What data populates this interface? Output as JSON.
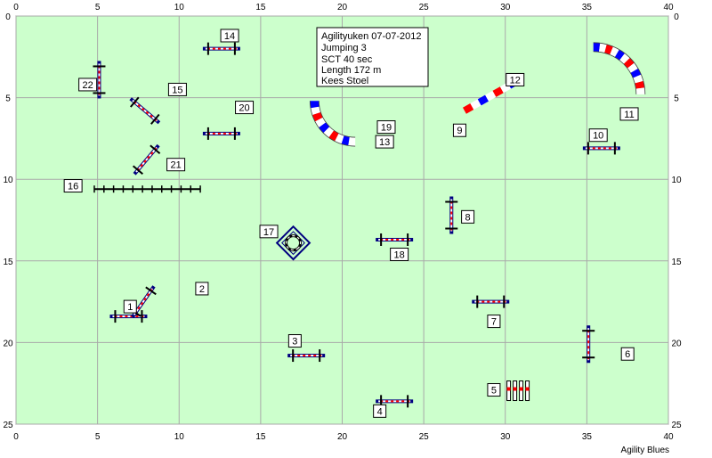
{
  "course": {
    "x_axis": {
      "min": 0,
      "max": 40,
      "ticks": [
        0,
        5,
        10,
        15,
        20,
        25,
        30,
        35,
        40
      ]
    },
    "y_axis": {
      "min": 0,
      "max": 25,
      "ticks": [
        0,
        5,
        10,
        15,
        20,
        25
      ]
    },
    "grid": true,
    "field_color": "#ccffcc",
    "grid_color": "#a9a9a9"
  },
  "info": {
    "lines": [
      "Agilityuken 07-07-2012",
      "Jumping 3",
      "SCT 40 sec",
      "Length 172 m",
      "Kees Stoel"
    ]
  },
  "footer": "Agility Blues",
  "colors": {
    "red": "#ff0000",
    "blue": "#0000ff",
    "white": "#ffffff",
    "black": "#000000",
    "navy": "#000080"
  },
  "jumps": [
    {
      "number": "1",
      "x": 6.9,
      "y": 18.4,
      "angle": 0
    },
    {
      "number": "2",
      "x": 7.8,
      "y": 17.5,
      "angle": -55,
      "cx": 11.5,
      "cy": 18.0
    },
    {
      "number": "3",
      "x": 17.8,
      "y": 20.8,
      "angle": 0
    },
    {
      "number": "4",
      "x": 23.2,
      "y": 23.6,
      "angle": 0
    },
    {
      "number": "6",
      "x": 35.1,
      "y": 20.1,
      "angle": 90
    },
    {
      "number": "7",
      "x": 29.1,
      "y": 17.5,
      "angle": 0
    },
    {
      "number": "8",
      "x": 26.7,
      "y": 12.2,
      "angle": 90
    },
    {
      "number": "10",
      "x": 35.9,
      "y": 8.1,
      "angle": 0
    },
    {
      "number": "14",
      "x": 12.6,
      "y": 2.0,
      "angle": 0
    },
    {
      "number": "15",
      "x": 7.9,
      "y": 5.8,
      "angle": 40
    },
    {
      "number": "18",
      "x": 23.2,
      "y": 13.7,
      "angle": 0
    },
    {
      "number": "20",
      "x": 12.6,
      "y": 7.2,
      "angle": 0
    },
    {
      "number": "21",
      "x": 8.0,
      "y": 8.8,
      "angle": -50
    },
    {
      "number": "22",
      "x": 5.1,
      "y": 3.9,
      "angle": 90
    }
  ],
  "labels": [
    {
      "text": "1",
      "x": 7.0,
      "y": 17.8
    },
    {
      "text": "2",
      "x": 11.4,
      "y": 16.7
    },
    {
      "text": "3",
      "x": 17.1,
      "y": 19.9
    },
    {
      "text": "4",
      "x": 22.3,
      "y": 24.2
    },
    {
      "text": "5",
      "x": 29.3,
      "y": 22.9
    },
    {
      "text": "6",
      "x": 37.5,
      "y": 20.7
    },
    {
      "text": "7",
      "x": 29.3,
      "y": 18.7
    },
    {
      "text": "8",
      "x": 27.7,
      "y": 12.3
    },
    {
      "text": "9",
      "x": 27.2,
      "y": 7.0
    },
    {
      "text": "10",
      "x": 35.7,
      "y": 7.3
    },
    {
      "text": "11",
      "x": 37.6,
      "y": 6.0
    },
    {
      "text": "12",
      "x": 30.6,
      "y": 3.9
    },
    {
      "text": "13",
      "x": 22.6,
      "y": 7.7
    },
    {
      "text": "14",
      "x": 13.1,
      "y": 1.2
    },
    {
      "text": "15",
      "x": 9.9,
      "y": 4.5
    },
    {
      "text": "16",
      "x": 3.5,
      "y": 10.4
    },
    {
      "text": "17",
      "x": 15.5,
      "y": 13.2
    },
    {
      "text": "18",
      "x": 23.5,
      "y": 14.6
    },
    {
      "text": "19",
      "x": 22.7,
      "y": 6.8
    },
    {
      "text": "20",
      "x": 14.0,
      "y": 5.6
    },
    {
      "text": "21",
      "x": 9.8,
      "y": 9.1
    },
    {
      "text": "22",
      "x": 4.4,
      "y": 4.2
    }
  ],
  "tunnels": [
    {
      "id": "11",
      "cx": 35.4,
      "cy": 4.8,
      "r": 2.9,
      "start_deg": 270,
      "end_deg": 360,
      "segments": 12
    },
    {
      "id": "13",
      "cx": 20.8,
      "cy": 5.2,
      "r": 2.5,
      "start_deg": 90,
      "end_deg": 180,
      "segments": 10,
      "reverse": true
    }
  ],
  "straight_tunnel": {
    "id": "9-12",
    "x1": 27.5,
    "y1": 5.8,
    "x2": 30.7,
    "y2": 4.0,
    "segments": 7
  },
  "weave": {
    "id": "16",
    "x1": 4.8,
    "y1": 10.6,
    "x2": 11.3,
    "y2": 10.6,
    "poles": 12
  },
  "tire": {
    "id": "17",
    "x": 17.0,
    "y": 13.9
  },
  "long_jump": {
    "id": "5",
    "x": 30.1,
    "y": 22.9,
    "boards": 4
  }
}
